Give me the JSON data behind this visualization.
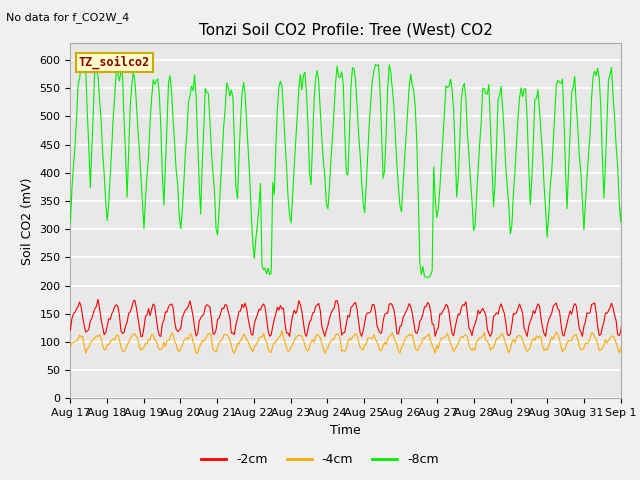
{
  "title": "Tonzi Soil CO2 Profile: Tree (West) CO2",
  "top_left_note": "No data for f_CO2W_4",
  "ylabel": "Soil CO2 (mV)",
  "xlabel": "Time",
  "ylim": [
    0,
    630
  ],
  "yticks": [
    0,
    50,
    100,
    150,
    200,
    250,
    300,
    350,
    400,
    450,
    500,
    550,
    600
  ],
  "legend_label": "TZ_soilco2",
  "legend_bg": "#ffffcc",
  "legend_border": "#ccaa00",
  "series": [
    "-2cm",
    "-4cm",
    "-8cm"
  ],
  "colors": [
    "#ff0000",
    "#ffaa00",
    "#00ee00"
  ],
  "background_color": "#e8e8e8",
  "grid_color": "#ffffff",
  "fig_bg": "#f0f0f0",
  "title_fontsize": 11,
  "axis_fontsize": 9,
  "tick_fontsize": 8,
  "x_labels": [
    "Aug 17",
    "Aug 18",
    "Aug 19",
    "Aug 20",
    "Aug 21",
    "Aug 22",
    "Aug 23",
    "Aug 24",
    "Aug 25",
    "Aug 26",
    "Aug 27",
    "Aug 28",
    "Aug 29",
    "Aug 30",
    "Aug 31",
    "Sep 1"
  ]
}
